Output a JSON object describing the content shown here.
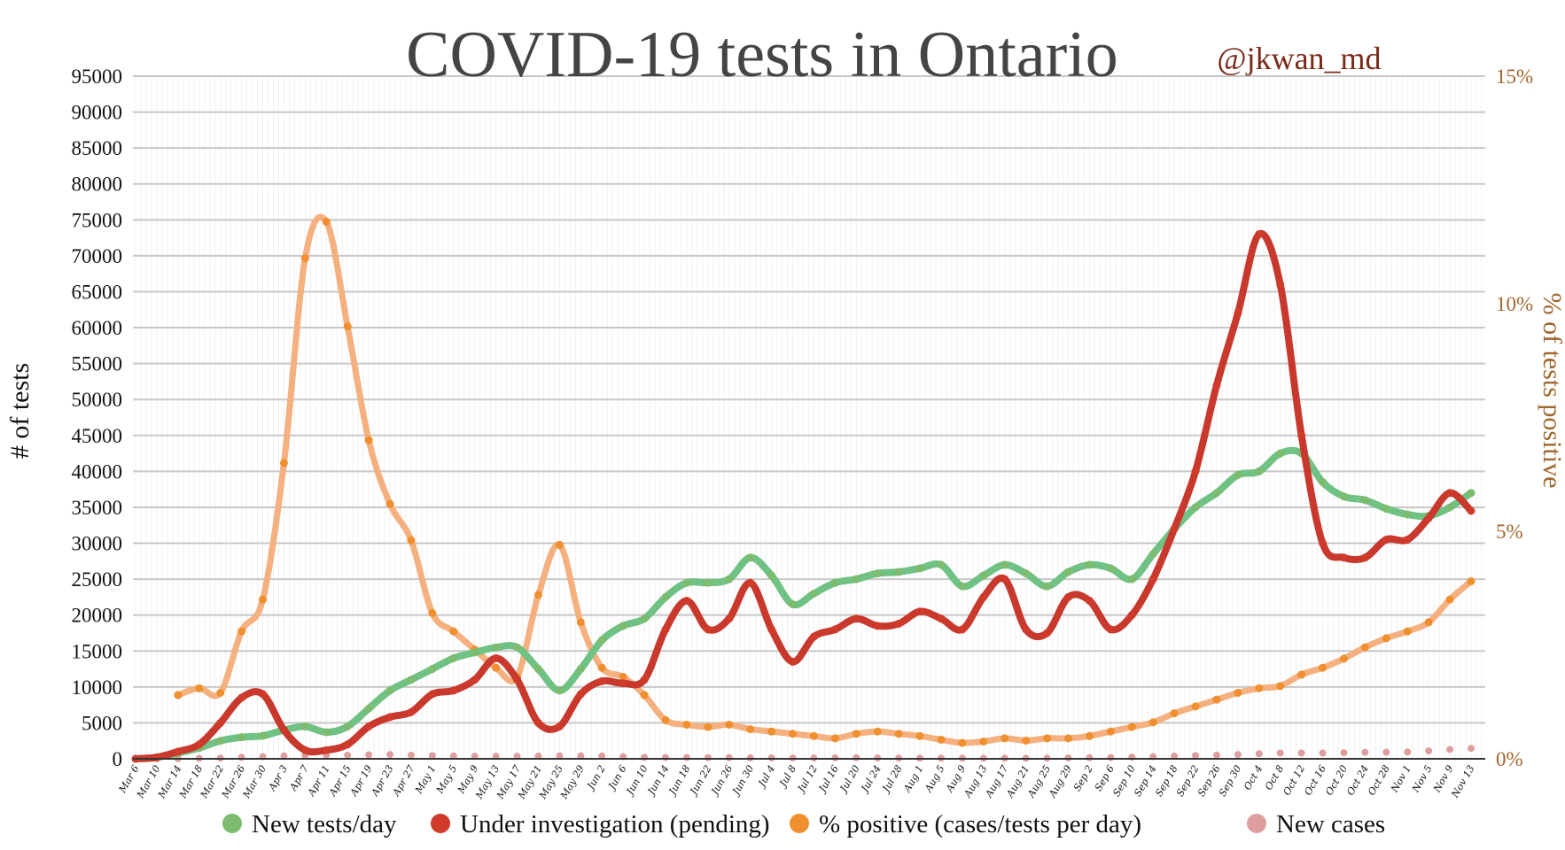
{
  "chart_data": {
    "type": "line",
    "title": "COVID-19 tests in Ontario",
    "credit": "@jkwan_md",
    "ylabel": "# of tests",
    "y2label": "% of tests positive",
    "ylim": [
      0,
      95000
    ],
    "y2lim": [
      0,
      15
    ],
    "yticks": [
      "0",
      "5000",
      "10000",
      "15000",
      "20000",
      "25000",
      "30000",
      "35000",
      "40000",
      "45000",
      "50000",
      "55000",
      "60000",
      "65000",
      "70000",
      "75000",
      "80000",
      "85000",
      "90000",
      "95000"
    ],
    "y2ticks": [
      "0%",
      "5%",
      "10%",
      "15%"
    ],
    "grid": true,
    "legend_placement": "bottom",
    "x": [
      "Mar 6",
      "Mar 10",
      "Mar 14",
      "Mar 18",
      "Mar 22",
      "Mar 26",
      "Mar 30",
      "Apr 3",
      "Apr 7",
      "Apr 11",
      "Apr 15",
      "Apr 19",
      "Apr 23",
      "Apr 27",
      "May 1",
      "May 5",
      "May 9",
      "May 13",
      "May 17",
      "May 21",
      "May 25",
      "May 29",
      "Jun 2",
      "Jun 6",
      "Jun 10",
      "Jun 14",
      "Jun 18",
      "Jun 22",
      "Jun 26",
      "Jun 30",
      "Jul 4",
      "Jul 8",
      "Jul 12",
      "Jul 16",
      "Jul 20",
      "Jul 24",
      "Jul 28",
      "Aug 1",
      "Aug 5",
      "Aug 9",
      "Aug 13",
      "Aug 17",
      "Aug 21",
      "Aug 25",
      "Aug 29",
      "Sep 2",
      "Sep 6",
      "Sep 10",
      "Sep 14",
      "Sep 18",
      "Sep 22",
      "Sep 26",
      "Sep 30",
      "Oct 4",
      "Oct 8",
      "Oct 12",
      "Oct 16",
      "Oct 20",
      "Oct 24",
      "Oct 28",
      "Nov 1",
      "Nov 5",
      "Nov 9",
      "Nov 13"
    ],
    "series": [
      {
        "name": "New tests/day",
        "axis": "left",
        "color": "#6fc283",
        "dot_color": "#7dbb6f",
        "values": [
          0,
          200,
          800,
          1500,
          2500,
          3000,
          3200,
          4000,
          4500,
          3700,
          4500,
          7000,
          9500,
          11000,
          12500,
          14000,
          14800,
          15500,
          15500,
          12500,
          9500,
          12500,
          16500,
          18500,
          19500,
          22500,
          24500,
          24500,
          25000,
          28000,
          25500,
          21500,
          23000,
          24500,
          25000,
          25800,
          26000,
          26500,
          27000,
          24000,
          25500,
          27000,
          25800,
          24000,
          26000,
          27000,
          26500,
          25000,
          28500,
          32000,
          35000,
          37000,
          39500,
          40000,
          42500,
          42500,
          38500,
          36500,
          36000,
          34800,
          34000,
          33800,
          35000,
          37000
        ]
      },
      {
        "name": "Under investigation (pending)",
        "axis": "left",
        "color": "#c8382c",
        "dot_color": "#cf3a2a",
        "values": [
          0,
          200,
          1000,
          2000,
          5000,
          8500,
          9000,
          4000,
          1200,
          1200,
          2000,
          4500,
          5800,
          6500,
          9000,
          9500,
          11000,
          14000,
          11000,
          5000,
          4500,
          9000,
          10800,
          10500,
          11000,
          18000,
          22000,
          18000,
          19500,
          24500,
          18000,
          13500,
          17000,
          18000,
          19500,
          18500,
          18800,
          20500,
          19500,
          18000,
          22500,
          25000,
          18000,
          17500,
          22500,
          22000,
          18000,
          20000,
          25000,
          32000,
          40000,
          52000,
          62000,
          73000,
          66000,
          45000,
          30000,
          28000,
          28000,
          30500,
          30500,
          33500,
          37000,
          34500
        ]
      },
      {
        "name": "% positive (cases/tests per day)",
        "axis": "right",
        "color": "#f4b07e",
        "dot_color": "#ef8f2f",
        "values": [
          null,
          null,
          1.4,
          1.55,
          1.45,
          2.8,
          3.5,
          6.5,
          11.0,
          11.8,
          9.5,
          7.0,
          5.6,
          4.8,
          3.2,
          2.8,
          2.4,
          2.0,
          1.8,
          3.6,
          4.7,
          3.0,
          2.0,
          1.8,
          1.4,
          0.85,
          0.75,
          0.7,
          0.75,
          0.65,
          0.6,
          0.55,
          0.5,
          0.45,
          0.55,
          0.6,
          0.55,
          0.5,
          0.42,
          0.35,
          0.38,
          0.45,
          0.4,
          0.45,
          0.45,
          0.5,
          0.6,
          0.7,
          0.8,
          1.0,
          1.15,
          1.3,
          1.45,
          1.55,
          1.6,
          1.85,
          2.0,
          2.2,
          2.45,
          2.65,
          2.8,
          3.0,
          3.5,
          3.9
        ]
      },
      {
        "name": "New cases",
        "axis": "left",
        "color": "#e0a0a0",
        "dot_color": "#df9e9e",
        "values": [
          0,
          10,
          20,
          60,
          100,
          200,
          300,
          400,
          450,
          480,
          500,
          550,
          600,
          500,
          450,
          400,
          350,
          350,
          350,
          380,
          400,
          400,
          400,
          300,
          200,
          190,
          180,
          160,
          150,
          130,
          120,
          115,
          110,
          130,
          150,
          120,
          100,
          90,
          80,
          85,
          90,
          85,
          80,
          100,
          120,
          150,
          170,
          230,
          300,
          380,
          450,
          520,
          600,
          700,
          800,
          800,
          800,
          850,
          900,
          920,
          950,
          1100,
          1300,
          1450
        ]
      }
    ]
  }
}
